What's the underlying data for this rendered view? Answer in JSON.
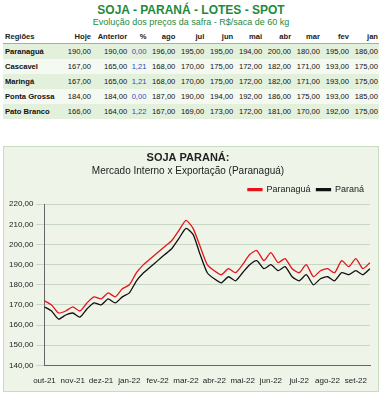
{
  "table": {
    "title": "SOJA - PARANÁ - LOTES - SPOT",
    "subtitle": "Evolução dos preços da safra - R$/saca de 60 kg",
    "header": [
      "Regiões",
      "Hoje",
      "Anterior",
      "%",
      "ago",
      "jul",
      "jun",
      "mai",
      "abr",
      "mar",
      "fev",
      "jan"
    ],
    "rows": [
      [
        "Paranaguá",
        "190,00",
        "190,00",
        "0,00",
        "196,00",
        "195,00",
        "195,00",
        "194,00",
        "200,00",
        "180,00",
        "195,00",
        "186,00"
      ],
      [
        "Cascavel",
        "167,00",
        "165,00",
        "1,21",
        "168,00",
        "170,00",
        "175,00",
        "172,00",
        "182,00",
        "171,00",
        "193,00",
        "175,00"
      ],
      [
        "Maringá",
        "167,00",
        "165,00",
        "1,21",
        "168,00",
        "170,00",
        "175,00",
        "172,00",
        "182,00",
        "171,00",
        "193,00",
        "175,00"
      ],
      [
        "Ponta Grossa",
        "184,00",
        "184,00",
        "0,00",
        "187,00",
        "190,00",
        "194,00",
        "192,00",
        "186,00",
        "175,00",
        "193,00",
        "185,00"
      ],
      [
        "Pato Branco",
        "166,00",
        "164,00",
        "1,22",
        "167,00",
        "169,00",
        "173,00",
        "172,00",
        "181,00",
        "170,00",
        "192,00",
        "175,00"
      ]
    ]
  },
  "chart_data": {
    "type": "line",
    "title": "SOJA PARANÁ:",
    "subtitle": "Mercado Interno x Exportação (Paranaguá)",
    "categories": [
      "out-21",
      null,
      null,
      null,
      "nov-21",
      null,
      null,
      null,
      "dez-21",
      null,
      null,
      null,
      "jan-22",
      null,
      null,
      null,
      "fev-22",
      null,
      null,
      null,
      "mar-22",
      null,
      null,
      null,
      "abr-22",
      null,
      null,
      null,
      "mai-22",
      null,
      null,
      null,
      "jun-22",
      null,
      null,
      null,
      "jul-22",
      null,
      null,
      null,
      "ago-22",
      null,
      null,
      null,
      "set-22",
      null,
      null
    ],
    "series": [
      {
        "name": "Paranaguá",
        "color": "#e3141b",
        "values": [
          172,
          170,
          166,
          167,
          169,
          167,
          171,
          174,
          173,
          176,
          174,
          178,
          180,
          186,
          190,
          193,
          196,
          199,
          202,
          207,
          212,
          208,
          199,
          190,
          187,
          185,
          188,
          186,
          190,
          195,
          197,
          192,
          196,
          191,
          193,
          188,
          186,
          190,
          184,
          187,
          188,
          186,
          192,
          189,
          193,
          188,
          191
        ]
      },
      {
        "name": "Paraná",
        "color": "#111111",
        "values": [
          169,
          167,
          163,
          165,
          166,
          164,
          168,
          171,
          170,
          173,
          171,
          174,
          176,
          182,
          186,
          189,
          192,
          195,
          198,
          203,
          208,
          205,
          195,
          186,
          183,
          181,
          184,
          182,
          186,
          190,
          192,
          188,
          190,
          187,
          189,
          184,
          182,
          185,
          180,
          183,
          184,
          182,
          186,
          185,
          187,
          185,
          188
        ]
      }
    ],
    "ylim": [
      140,
      220
    ],
    "yticks": [
      {
        "value": 140,
        "label": "140,00"
      },
      {
        "value": 150,
        "label": "150,00"
      },
      {
        "value": 160,
        "label": "160,00"
      },
      {
        "value": 170,
        "label": "170,00"
      },
      {
        "value": 180,
        "label": "180,00"
      },
      {
        "value": 190,
        "label": "190,00"
      },
      {
        "value": 200,
        "label": "200,00"
      },
      {
        "value": 210,
        "label": "210,00"
      },
      {
        "value": 220,
        "label": "220,00"
      }
    ],
    "grid": true,
    "legend": "upper right"
  }
}
